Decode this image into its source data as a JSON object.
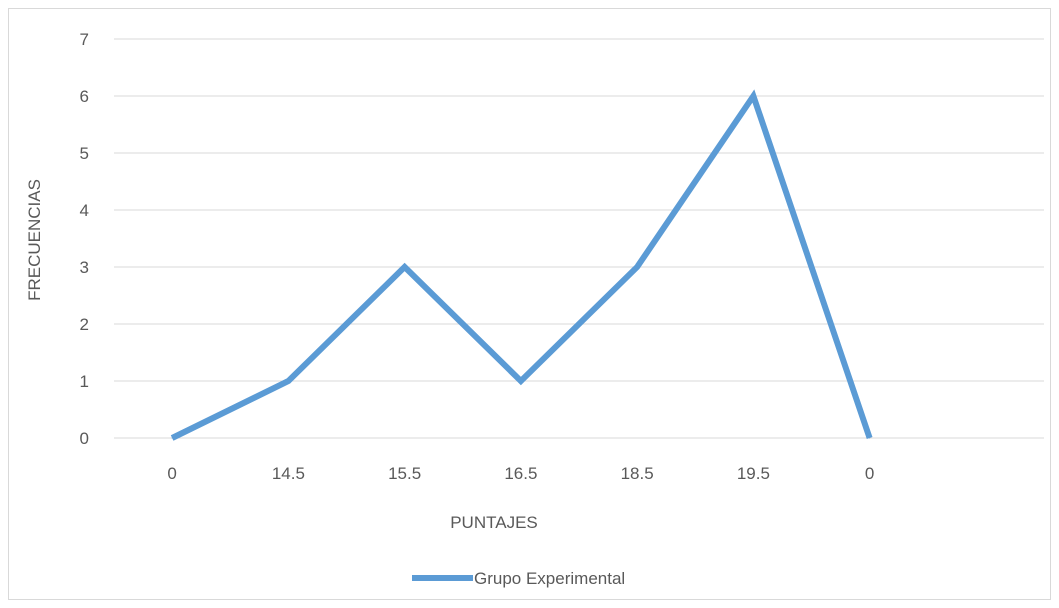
{
  "chart_data": {
    "type": "line",
    "categories": [
      "0",
      "14.5",
      "15.5",
      "16.5",
      "18.5",
      "19.5",
      "0"
    ],
    "series": [
      {
        "name": "Grupo Experimental",
        "values": [
          0,
          1,
          3,
          1,
          3,
          6,
          0
        ],
        "color": "#5b9bd5"
      }
    ],
    "xlabel": "PUNTAJES",
    "ylabel": "FRECUENCIAS",
    "ylim": [
      0,
      7
    ],
    "yticks": [
      0,
      1,
      2,
      3,
      4,
      5,
      6,
      7
    ],
    "grid": true,
    "legend": "bottom"
  }
}
